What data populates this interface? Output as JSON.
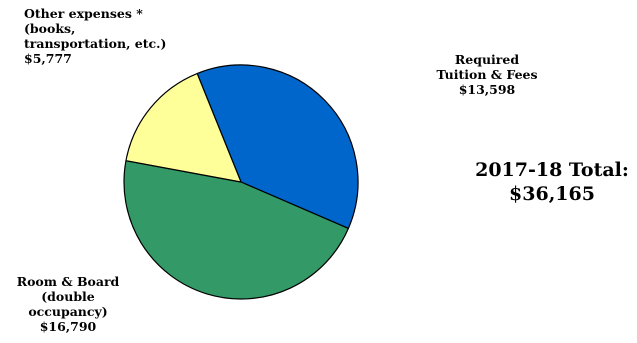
{
  "chart_data": {
    "type": "pie",
    "title": "",
    "slices": [
      {
        "name": "Required Tuition & Fees",
        "value": 13598,
        "label_lines": [
          "Required",
          "Tuition & Fees",
          "$13,598"
        ],
        "color": "#0066CC"
      },
      {
        "name": "Room & Board (double occupancy)",
        "value": 16790,
        "label_lines": [
          "Room & Board",
          "(double",
          "occupancy)",
          "$16,790"
        ],
        "color": "#339966"
      },
      {
        "name": "Other expenses * (books, transportation, etc.)",
        "value": 5777,
        "label_lines": [
          "Other expenses *",
          "(books,",
          "transportation, etc.)",
          "$5,777"
        ],
        "color": "#FFFF99"
      }
    ],
    "total_lines": [
      "2017-18 Total:",
      "$36,165"
    ],
    "legend": "none"
  }
}
